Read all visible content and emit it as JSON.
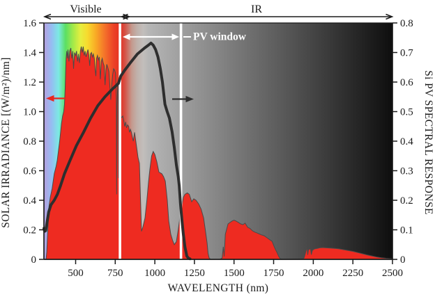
{
  "annotations": {
    "visible": "Visible",
    "ir": "IR",
    "pv_window": "PV window"
  },
  "axes": {
    "x": {
      "title": "WAVELENGTH (nm)",
      "min": 300,
      "max": 2500,
      "ticks": [
        "500",
        "750",
        "1000",
        "1250",
        "1500",
        "1750",
        "2000",
        "2250",
        "2500"
      ]
    },
    "y_left": {
      "title": "SOLAR IRRADIANCE [(W/m²)/nm]",
      "min": 0,
      "max": 1.6,
      "ticks": [
        "1.6",
        "1.4",
        "1.2",
        "1.0",
        "0.8",
        "0.6",
        "0.4",
        "0.2",
        "0"
      ]
    },
    "y_right": {
      "title": "Si PV SPECTRAL RESPONSE",
      "min": 0,
      "max": 0.8,
      "ticks": [
        "0.8",
        "0.7",
        "0.6",
        "0.5",
        "0.4",
        "0.3",
        "0.2",
        "0.1",
        "0"
      ]
    }
  },
  "colors": {
    "solar_fill": "#ee2b21",
    "solar_edge": "#4a4a4a",
    "response_line": "#2e2e2e",
    "marker_line": "#ffffff",
    "axis": "#1a1a1a",
    "red_arrow": "#e8261e"
  },
  "chart_data": {
    "type": "area+line",
    "xlabel": "WAVELENGTH (nm)",
    "x_range": [
      300,
      2500
    ],
    "left_axis": {
      "label": "SOLAR IRRADIANCE [(W/m²)/nm]",
      "range": [
        0,
        1.6
      ]
    },
    "right_axis": {
      "label": "Si PV SPECTRAL RESPONSE",
      "range": [
        0,
        0.8
      ]
    },
    "regions": {
      "visible_nm": [
        300,
        780
      ],
      "ir_nm": [
        780,
        2500
      ],
      "pv_window_nm": [
        780,
        1165
      ]
    },
    "background_stops": [
      [
        0.0,
        "#b79fdf"
      ],
      [
        0.022,
        "#95bdf2"
      ],
      [
        0.042,
        "#7ce9e4"
      ],
      [
        0.062,
        "#5bdf63"
      ],
      [
        0.085,
        "#a8ea48"
      ],
      [
        0.105,
        "#e6ee3f"
      ],
      [
        0.125,
        "#f7da2e"
      ],
      [
        0.15,
        "#f8a825"
      ],
      [
        0.175,
        "#f4712a"
      ],
      [
        0.2,
        "#ec4227"
      ],
      [
        0.218,
        "#e63122"
      ],
      [
        0.232,
        "#d55044"
      ],
      [
        0.252,
        "#c49a8e"
      ],
      [
        0.268,
        "#c0b2ac"
      ],
      [
        0.285,
        "#c2bebb"
      ],
      [
        0.3,
        "#b6b6b6"
      ],
      [
        0.4,
        "#9d9d9d"
      ],
      [
        0.5,
        "#858585"
      ],
      [
        0.6,
        "#6d6d6d"
      ],
      [
        0.7,
        "#565656"
      ],
      [
        0.8,
        "#3e3e3e"
      ],
      [
        0.9,
        "#262626"
      ],
      [
        1.0,
        "#0e0e0e"
      ]
    ],
    "series": [
      {
        "name": "Solar irradiance",
        "type": "area",
        "axis": "left",
        "unit": "(W/m²)/nm",
        "color": "#ee2b21",
        "points": [
          [
            305,
            0.0
          ],
          [
            313,
            0.0
          ],
          [
            318,
            0.05
          ],
          [
            322,
            0.14
          ],
          [
            327,
            0.25
          ],
          [
            332,
            0.36
          ],
          [
            340,
            0.42
          ],
          [
            352,
            0.48
          ],
          [
            365,
            0.58
          ],
          [
            377,
            0.63
          ],
          [
            384,
            0.67
          ],
          [
            391,
            0.73
          ],
          [
            398,
            0.79
          ],
          [
            405,
            0.86
          ],
          [
            411,
            0.92
          ],
          [
            418,
            0.97
          ],
          [
            425,
            1.0
          ],
          [
            430,
            1.05
          ],
          [
            434,
            1.16
          ],
          [
            437,
            1.26
          ],
          [
            440,
            1.36
          ],
          [
            444,
            1.41
          ],
          [
            448,
            1.36
          ],
          [
            452,
            1.42
          ],
          [
            458,
            1.34
          ],
          [
            463,
            1.41
          ],
          [
            470,
            1.43
          ],
          [
            476,
            1.36
          ],
          [
            482,
            1.41
          ],
          [
            487,
            1.29
          ],
          [
            493,
            1.4
          ],
          [
            500,
            1.38
          ],
          [
            506,
            1.41
          ],
          [
            512,
            1.34
          ],
          [
            518,
            1.39
          ],
          [
            524,
            1.33
          ],
          [
            530,
            1.41
          ],
          [
            536,
            1.44
          ],
          [
            542,
            1.4
          ],
          [
            548,
            1.44
          ],
          [
            554,
            1.38
          ],
          [
            560,
            1.41
          ],
          [
            566,
            1.37
          ],
          [
            572,
            1.4
          ],
          [
            578,
            1.42
          ],
          [
            584,
            1.38
          ],
          [
            589,
            1.31
          ],
          [
            594,
            1.39
          ],
          [
            600,
            1.4
          ],
          [
            606,
            1.37
          ],
          [
            612,
            1.39
          ],
          [
            618,
            1.36
          ],
          [
            624,
            1.28
          ],
          [
            628,
            1.24
          ],
          [
            632,
            1.36
          ],
          [
            638,
            1.38
          ],
          [
            644,
            1.35
          ],
          [
            650,
            1.37
          ],
          [
            656,
            1.22
          ],
          [
            662,
            1.34
          ],
          [
            668,
            1.36
          ],
          [
            674,
            1.33
          ],
          [
            680,
            1.31
          ],
          [
            686,
            1.18
          ],
          [
            691,
            1.28
          ],
          [
            697,
            1.32
          ],
          [
            703,
            1.3
          ],
          [
            710,
            1.27
          ],
          [
            716,
            1.18
          ],
          [
            722,
            1.08
          ],
          [
            728,
            1.18
          ],
          [
            734,
            1.25
          ],
          [
            740,
            1.29
          ],
          [
            746,
            1.28
          ],
          [
            752,
            1.26
          ],
          [
            757,
            1.1
          ],
          [
            759,
            0.44
          ],
          [
            762,
            1.05
          ],
          [
            766,
            1.18
          ],
          [
            769,
            1.2
          ],
          [
            771,
            0.55
          ],
          [
            774,
            1.12
          ],
          [
            777,
            1.05
          ],
          [
            780,
            1.0
          ],
          [
            784,
            0.97
          ],
          [
            790,
            0.96
          ],
          [
            798,
            0.97
          ],
          [
            804,
            0.94
          ],
          [
            810,
            0.9
          ],
          [
            816,
            0.93
          ],
          [
            822,
            0.89
          ],
          [
            828,
            0.91
          ],
          [
            835,
            0.9
          ],
          [
            840,
            0.86
          ],
          [
            846,
            0.88
          ],
          [
            852,
            0.86
          ],
          [
            858,
            0.83
          ],
          [
            864,
            0.8
          ],
          [
            872,
            0.86
          ],
          [
            880,
            0.8
          ],
          [
            894,
            0.69
          ],
          [
            903,
            0.65
          ],
          [
            910,
            0.4
          ],
          [
            916,
            0.19
          ],
          [
            925,
            0.22
          ],
          [
            938,
            0.28
          ],
          [
            950,
            0.4
          ],
          [
            960,
            0.52
          ],
          [
            969,
            0.61
          ],
          [
            980,
            0.7
          ],
          [
            990,
            0.73
          ],
          [
            1000,
            0.71
          ],
          [
            1013,
            0.66
          ],
          [
            1026,
            0.59
          ],
          [
            1044,
            0.58
          ],
          [
            1055,
            0.56
          ],
          [
            1066,
            0.53
          ],
          [
            1079,
            0.4
          ],
          [
            1088,
            0.26
          ],
          [
            1101,
            0.17
          ],
          [
            1112,
            0.13
          ],
          [
            1123,
            0.1
          ],
          [
            1136,
            0.12
          ],
          [
            1148,
            0.2
          ],
          [
            1158,
            0.28
          ],
          [
            1170,
            0.36
          ],
          [
            1180,
            0.42
          ],
          [
            1190,
            0.44
          ],
          [
            1205,
            0.45
          ],
          [
            1218,
            0.44
          ],
          [
            1233,
            0.39
          ],
          [
            1246,
            0.41
          ],
          [
            1260,
            0.4
          ],
          [
            1277,
            0.375
          ],
          [
            1292,
            0.34
          ],
          [
            1308,
            0.28
          ],
          [
            1320,
            0.19
          ],
          [
            1330,
            0.11
          ],
          [
            1336,
            0.04
          ],
          [
            1343,
            0.01
          ],
          [
            1352,
            0.0
          ],
          [
            1380,
            0.0
          ],
          [
            1410,
            0.0
          ],
          [
            1425,
            0.01
          ],
          [
            1432,
            0.085
          ],
          [
            1438,
            0.02
          ],
          [
            1445,
            0.17
          ],
          [
            1462,
            0.24
          ],
          [
            1475,
            0.25
          ],
          [
            1488,
            0.26
          ],
          [
            1500,
            0.265
          ],
          [
            1512,
            0.26
          ],
          [
            1528,
            0.25
          ],
          [
            1542,
            0.24
          ],
          [
            1556,
            0.235
          ],
          [
            1570,
            0.245
          ],
          [
            1586,
            0.217
          ],
          [
            1600,
            0.21
          ],
          [
            1617,
            0.193
          ],
          [
            1630,
            0.185
          ],
          [
            1643,
            0.18
          ],
          [
            1660,
            0.172
          ],
          [
            1674,
            0.165
          ],
          [
            1690,
            0.16
          ],
          [
            1709,
            0.146
          ],
          [
            1725,
            0.133
          ],
          [
            1740,
            0.122
          ],
          [
            1752,
            0.09
          ],
          [
            1762,
            0.065
          ],
          [
            1772,
            0.045
          ],
          [
            1782,
            0.02
          ],
          [
            1791,
            0.005
          ],
          [
            1800,
            0.0
          ],
          [
            1850,
            0.0
          ],
          [
            1900,
            0.0
          ],
          [
            1930,
            0.0
          ],
          [
            1942,
            0.01
          ],
          [
            1950,
            0.04
          ],
          [
            1957,
            0.068
          ],
          [
            1962,
            0.072
          ],
          [
            1965,
            0.03
          ],
          [
            1970,
            0.065
          ],
          [
            1977,
            0.07
          ],
          [
            1983,
            0.068
          ],
          [
            1988,
            0.032
          ],
          [
            1994,
            0.06
          ],
          [
            2003,
            0.068
          ],
          [
            2012,
            0.072
          ],
          [
            2025,
            0.074
          ],
          [
            2040,
            0.078
          ],
          [
            2060,
            0.08
          ],
          [
            2080,
            0.078
          ],
          [
            2100,
            0.077
          ],
          [
            2130,
            0.075
          ],
          [
            2160,
            0.072
          ],
          [
            2190,
            0.066
          ],
          [
            2220,
            0.06
          ],
          [
            2250,
            0.054
          ],
          [
            2280,
            0.046
          ],
          [
            2310,
            0.038
          ],
          [
            2340,
            0.03
          ],
          [
            2370,
            0.023
          ],
          [
            2400,
            0.016
          ],
          [
            2430,
            0.011
          ],
          [
            2460,
            0.007
          ],
          [
            2500,
            0.004
          ]
        ]
      },
      {
        "name": "Si PV spectral response",
        "type": "line",
        "axis": "right",
        "color": "#2e2e2e",
        "points": [
          [
            300,
            0.105
          ],
          [
            305,
            0.095
          ],
          [
            311,
            0.097
          ],
          [
            318,
            0.12
          ],
          [
            330,
            0.16
          ],
          [
            345,
            0.185
          ],
          [
            365,
            0.2
          ],
          [
            385,
            0.22
          ],
          [
            405,
            0.25
          ],
          [
            430,
            0.29
          ],
          [
            465,
            0.335
          ],
          [
            505,
            0.385
          ],
          [
            550,
            0.43
          ],
          [
            595,
            0.478
          ],
          [
            640,
            0.52
          ],
          [
            685,
            0.55
          ],
          [
            730,
            0.575
          ],
          [
            770,
            0.595
          ],
          [
            785,
            0.62
          ],
          [
            810,
            0.64
          ],
          [
            845,
            0.665
          ],
          [
            890,
            0.695
          ],
          [
            935,
            0.715
          ],
          [
            960,
            0.725
          ],
          [
            976,
            0.732
          ],
          [
            990,
            0.725
          ],
          [
            1005,
            0.71
          ],
          [
            1020,
            0.685
          ],
          [
            1035,
            0.645
          ],
          [
            1048,
            0.6
          ],
          [
            1064,
            0.525
          ],
          [
            1078,
            0.5
          ],
          [
            1092,
            0.478
          ],
          [
            1109,
            0.431
          ],
          [
            1123,
            0.379
          ],
          [
            1136,
            0.32
          ],
          [
            1148,
            0.28
          ],
          [
            1154,
            0.25
          ],
          [
            1162,
            0.188
          ],
          [
            1171,
            0.132
          ],
          [
            1180,
            0.085
          ],
          [
            1190,
            0.042
          ],
          [
            1202,
            0.011
          ],
          [
            1212,
            0.004
          ],
          [
            1222,
            0.002
          ]
        ]
      }
    ]
  }
}
